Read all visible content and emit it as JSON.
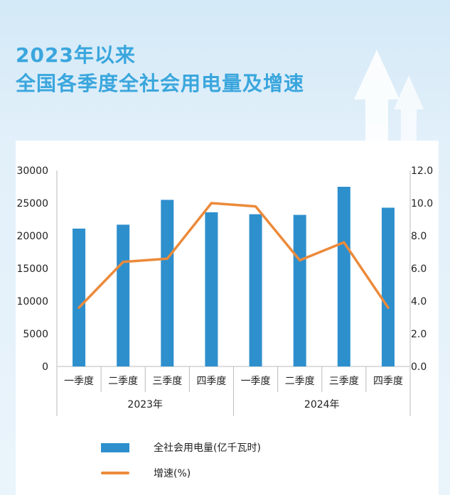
{
  "title": {
    "line1": "2023年以来",
    "line2": "全国各季度全社会用电量及增速"
  },
  "colors": {
    "title": "#3aa6dd",
    "bar": "#2e8fcd",
    "line": "#ec8a3a",
    "axis": "#bbbbbb"
  },
  "chart_data": {
    "type": "bar",
    "categories": [
      "一季度",
      "二季度",
      "三季度",
      "四季度",
      "一季度",
      "二季度",
      "三季度",
      "四季度"
    ],
    "groups": [
      {
        "label": "2023年",
        "start": 0,
        "end": 3
      },
      {
        "label": "2024年",
        "start": 4,
        "end": 7
      }
    ],
    "series": [
      {
        "name": "全社会用电量(亿千瓦时)",
        "type": "bar",
        "axis": "left",
        "values": [
          21100,
          21700,
          25500,
          23600,
          23300,
          23200,
          27500,
          24300
        ]
      },
      {
        "name": "增速(%)",
        "type": "line",
        "axis": "right",
        "values": [
          3.6,
          6.4,
          6.6,
          10.0,
          9.8,
          6.5,
          7.6,
          3.6
        ]
      }
    ],
    "y_left": {
      "ylim": [
        0,
        30000
      ],
      "ticks": [
        "0",
        "5000",
        "10000",
        "15000",
        "20000",
        "25000",
        "30000"
      ]
    },
    "y_right": {
      "ylim": [
        0,
        12
      ],
      "ticks": [
        "0.0",
        "2.0",
        "4.0",
        "6.0",
        "8.0",
        "10.0",
        "12.0"
      ]
    },
    "legend_position": "bottom",
    "grid": false
  }
}
